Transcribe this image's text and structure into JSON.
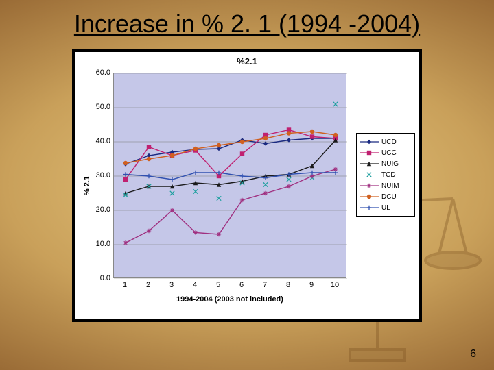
{
  "slide": {
    "title_text": "Increase in % 2. 1 (1994 -2004)",
    "page_number": "6",
    "bg_inner": "#e8c980",
    "bg_outer": "#5a3818"
  },
  "chart": {
    "type": "line",
    "title": "%2.1",
    "ylabel": "% 2.1",
    "xlabel": "1994-2004 (2003 not included)",
    "background_color": "#ffffff",
    "plot_bg": "#c5c7e8",
    "grid_color": "#7a7a7a",
    "ylim": [
      0,
      60
    ],
    "ytick_step": 10,
    "yticks": [
      "0.0",
      "10.0",
      "20.0",
      "30.0",
      "40.0",
      "50.0",
      "60.0"
    ],
    "x_categories": [
      "1",
      "2",
      "3",
      "4",
      "5",
      "6",
      "7",
      "8",
      "9",
      "10"
    ],
    "series": [
      {
        "name": "UCD",
        "color": "#1a2a80",
        "marker": "diamond",
        "line": true,
        "values": [
          33.5,
          36.0,
          37.0,
          37.8,
          38.0,
          40.5,
          39.5,
          40.5,
          41.0,
          41.0
        ]
      },
      {
        "name": "UCC",
        "color": "#c02070",
        "marker": "square",
        "line": true,
        "values": [
          29.0,
          38.5,
          36.0,
          37.5,
          30.0,
          36.5,
          42.0,
          43.5,
          41.5,
          41.0
        ]
      },
      {
        "name": "NUIG",
        "color": "#1a1a1a",
        "marker": "triangle",
        "line": true,
        "values": [
          25.0,
          27.0,
          27.0,
          28.0,
          27.5,
          28.5,
          30.0,
          30.5,
          33.0,
          40.5
        ]
      },
      {
        "name": "TCD",
        "color": "#20a0a0",
        "marker": "x",
        "line": false,
        "values": [
          24.5,
          27.0,
          25.0,
          25.5,
          23.5,
          28.0,
          27.5,
          29.0,
          29.5,
          51.0
        ]
      },
      {
        "name": "NUIM",
        "color": "#a03080",
        "marker": "star",
        "line": true,
        "values": [
          10.5,
          14.0,
          20.0,
          13.5,
          13.0,
          23.0,
          25.0,
          27.0,
          30.0,
          32.0
        ]
      },
      {
        "name": "DCU",
        "color": "#d06020",
        "marker": "circle",
        "line": true,
        "values": [
          33.8,
          35.0,
          36.0,
          38.0,
          39.0,
          40.0,
          41.0,
          42.5,
          43.0,
          42.0
        ]
      },
      {
        "name": "UL",
        "color": "#3050b0",
        "marker": "plus",
        "line": true,
        "values": [
          30.5,
          30.0,
          29.0,
          31.0,
          31.0,
          30.0,
          29.5,
          30.5,
          31.0,
          31.0
        ]
      }
    ]
  }
}
